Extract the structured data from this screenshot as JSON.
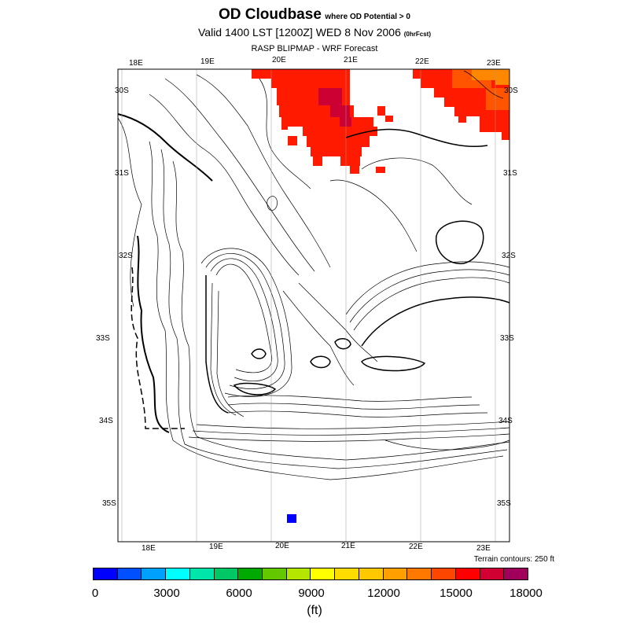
{
  "title": {
    "main": "OD Cloudbase",
    "qualifier": "where OD Potential > 0",
    "valid": "Valid 1400 LST [1200Z] WED 8 Nov 2006",
    "forecast_tag": "(0hrFcst)",
    "model": "RASP BLIPMAP - WRF Forecast"
  },
  "top_axis_labels": [
    "18E",
    "19E",
    "20E",
    "21E",
    "22E",
    "23E"
  ],
  "bottom_axis_labels": [
    "18E",
    "19E",
    "20E",
    "21E",
    "22E",
    "23E"
  ],
  "left_axis_labels": [
    "30S",
    "31S",
    "32S",
    "33S",
    "34S",
    "35S"
  ],
  "right_axis_labels": [
    "30S",
    "31S",
    "32S",
    "33S",
    "34S",
    "35S"
  ],
  "terrain_note": "Terrain contours: 250 ft",
  "colorbar": {
    "colors": [
      "#0000ff",
      "#0050ff",
      "#00a0ff",
      "#00ffff",
      "#00e6aa",
      "#00c864",
      "#00aa00",
      "#64c800",
      "#b4e600",
      "#ffff00",
      "#ffdc00",
      "#ffc800",
      "#ffa000",
      "#ff7800",
      "#ff4600",
      "#ff0000",
      "#d20032",
      "#a0005a"
    ],
    "labels": [
      "0",
      "3000",
      "6000",
      "9000",
      "12000",
      "15000",
      "18000"
    ],
    "units": "(ft)"
  },
  "map": {
    "frame_color": "#000000",
    "cloudbase_colors": {
      "high": "#ff1a00",
      "higher": "#cc0033",
      "mid_high": "#ff5500",
      "mid": "#ff8800",
      "low": "#0000ff"
    }
  }
}
